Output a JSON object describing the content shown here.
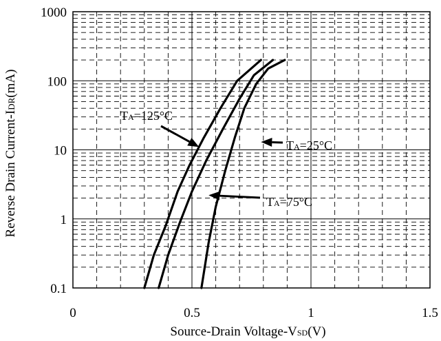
{
  "chart_data": {
    "type": "line",
    "title": "",
    "xlabel": {
      "main": "Source-Drain Voltage-V",
      "sub": "SD",
      "unit": "(V)"
    },
    "ylabel": {
      "main": "Reverse Drain Current-I",
      "sub": "DR",
      "unit": "(mA)"
    },
    "xlim": [
      0,
      1.5
    ],
    "ylim": [
      0.1,
      1000
    ],
    "yscale": "log",
    "grid": true,
    "x_ticks": [
      "0",
      "0.5",
      "1",
      "1.5"
    ],
    "y_ticks": [
      "0.1",
      "1",
      "10",
      "100",
      "1000"
    ],
    "colors": {
      "series": "#000000",
      "grid": "#000000",
      "background": "#ffffff"
    },
    "series": [
      {
        "points": [
          [
            0.3,
            0.1
          ],
          [
            0.34,
            0.3
          ],
          [
            0.39,
            0.8
          ],
          [
            0.44,
            2.5
          ],
          [
            0.49,
            6
          ],
          [
            0.55,
            15
          ],
          [
            0.62,
            40
          ],
          [
            0.69,
            100
          ],
          [
            0.79,
            200
          ]
        ]
      },
      {
        "points": [
          [
            0.36,
            0.1
          ],
          [
            0.4,
            0.3
          ],
          [
            0.45,
            0.9
          ],
          [
            0.5,
            2.5
          ],
          [
            0.56,
            7
          ],
          [
            0.63,
            20
          ],
          [
            0.7,
            55
          ],
          [
            0.76,
            120
          ],
          [
            0.84,
            200
          ]
        ]
      },
      {
        "points": [
          [
            0.54,
            0.1
          ],
          [
            0.57,
            0.45
          ],
          [
            0.6,
            1.5
          ],
          [
            0.64,
            5
          ],
          [
            0.68,
            15
          ],
          [
            0.72,
            40
          ],
          [
            0.77,
            90
          ],
          [
            0.82,
            150
          ],
          [
            0.89,
            200
          ]
        ]
      }
    ],
    "annotations": [
      {
        "prefix": "T",
        "sub": "A",
        "text": "=125°C",
        "arrow_x": 0.53,
        "arrow_y": 11
      },
      {
        "prefix": "T",
        "sub": "A",
        "text": "=25°C",
        "arrow_x": 0.79,
        "arrow_y": 13
      },
      {
        "prefix": "T",
        "sub": "A",
        "text": "=75°C",
        "arrow_x": 0.57,
        "arrow_y": 2.2
      }
    ]
  }
}
